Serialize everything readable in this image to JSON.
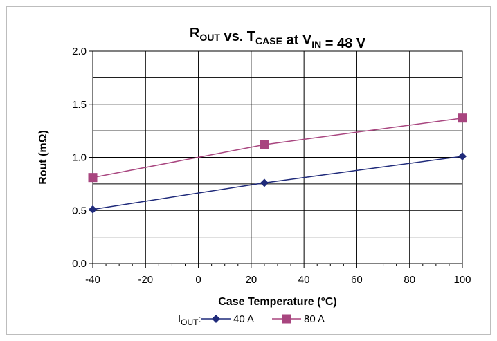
{
  "chart_data": {
    "type": "line",
    "title": {
      "parts": [
        {
          "text": "R",
          "sub": "OUT"
        },
        {
          "text": " vs. T",
          "sub": "CASE"
        },
        {
          "text": " at V",
          "sub": "IN"
        },
        {
          "text": " = 48 V",
          "sub": ""
        }
      ]
    },
    "xlabel": "Case Temperature (°C)",
    "ylabel": "Rout (mΩ)",
    "xlim": [
      -40,
      100
    ],
    "ylim": [
      0,
      2
    ],
    "xticks": [
      -40,
      -20,
      0,
      20,
      40,
      60,
      80,
      100
    ],
    "xtick_labels": [
      "-40",
      "-20",
      "0",
      "20",
      "40",
      "60",
      "80",
      "100"
    ],
    "yticks": [
      0,
      0.5,
      1.0,
      1.5,
      2.0
    ],
    "ytick_labels": [
      "0.0",
      "0.5",
      "1.0",
      "1.5",
      "2.0"
    ],
    "grid": true,
    "legend": {
      "position": "bottom",
      "prefix": "I",
      "prefix_sub": "OUT",
      "prefix_suffix": ":"
    },
    "series": [
      {
        "name": "40 A",
        "marker": "diamond",
        "color": "#1f2a7a",
        "x": [
          -40,
          25,
          100
        ],
        "y": [
          0.51,
          0.76,
          1.01
        ]
      },
      {
        "name": "80 A",
        "marker": "square",
        "color": "#a8457f",
        "x": [
          -40,
          25,
          100
        ],
        "y": [
          0.81,
          1.12,
          1.37
        ]
      }
    ]
  }
}
